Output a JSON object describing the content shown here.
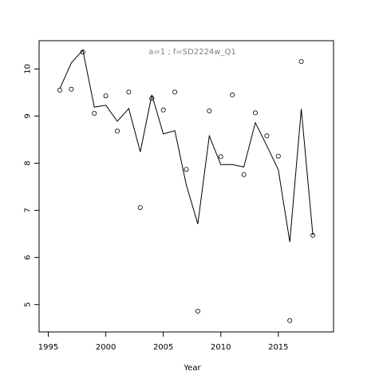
{
  "chart_data": {
    "type": "scatter",
    "title": "",
    "annotation": "a=1  ;  f=SD2224w_Q1",
    "xlabel": "Year",
    "ylabel": "",
    "xlim": [
      1994.2,
      2019.8
    ],
    "ylim": [
      4.42,
      10.6
    ],
    "xticks": [
      1995,
      2000,
      2005,
      2010,
      2015
    ],
    "yticks": [
      5,
      6,
      7,
      8,
      9,
      10
    ],
    "grid": false,
    "series": [
      {
        "kind": "points",
        "marker": "open-circle",
        "x": [
          1996,
          1997,
          1998,
          1999,
          2000,
          2001,
          2002,
          2003,
          2004,
          2005,
          2006,
          2007,
          2008,
          2009,
          2010,
          2011,
          2012,
          2013,
          2014,
          2015,
          2016,
          2017,
          2018
        ],
        "y": [
          9.55,
          9.57,
          10.36,
          9.06,
          9.43,
          8.68,
          9.51,
          7.06,
          9.38,
          9.13,
          9.51,
          7.87,
          4.86,
          9.11,
          8.14,
          9.45,
          7.76,
          9.07,
          8.58,
          8.15,
          4.66,
          10.16,
          6.47
        ]
      },
      {
        "kind": "line",
        "x": [
          1996,
          1997,
          1998,
          1999,
          2000,
          2001,
          2002,
          2003,
          2004,
          2005,
          2006,
          2007,
          2008,
          2009,
          2010,
          2011,
          2012,
          2013,
          2014,
          2015,
          2016,
          2017,
          2018
        ],
        "y": [
          9.58,
          10.13,
          10.4,
          9.19,
          9.23,
          8.89,
          9.16,
          8.24,
          9.45,
          8.62,
          8.69,
          7.54,
          6.71,
          8.58,
          7.97,
          7.97,
          7.92,
          8.86,
          8.37,
          7.86,
          6.33,
          9.15,
          6.47
        ]
      }
    ]
  }
}
